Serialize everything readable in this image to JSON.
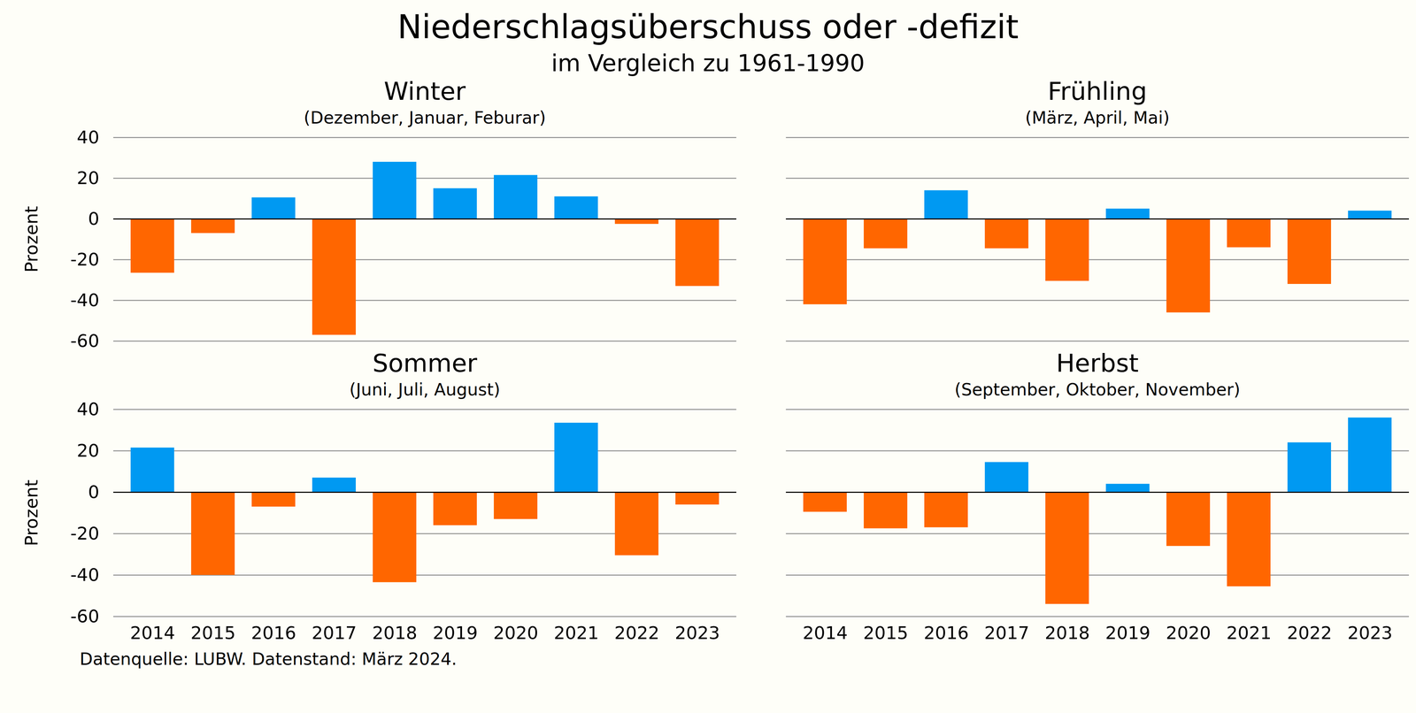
{
  "title": "Niederschlagsüberschuss oder -defizit",
  "subtitle": "im Vergleich zu 1961-1990",
  "source": "Datenquelle: LUBW. Datenstand: März 2024.",
  "chart_data": [
    {
      "type": "bar",
      "title": "Winter",
      "subtitle": "(Dezember, Januar, Feburar)",
      "categories": [
        "2014",
        "2015",
        "2016",
        "2017",
        "2018",
        "2019",
        "2020",
        "2021",
        "2022",
        "2023"
      ],
      "values": [
        -26.5,
        -7,
        10.5,
        -57,
        28,
        15,
        21.5,
        11,
        -2.5,
        -33
      ],
      "colors": [
        "#ff6600",
        "#ff6600",
        "#0099f2",
        "#ff6600",
        "#0099f2",
        "#0099f2",
        "#0099f2",
        "#0099f2",
        "#ff6600",
        "#ff6600"
      ],
      "ylabel": "Prozent",
      "ylim": [
        -60,
        40
      ],
      "yticks": [
        -60,
        -40,
        -20,
        0,
        20,
        40
      ],
      "grid": true,
      "tick_labels": "y"
    },
    {
      "type": "bar",
      "title": "Frühling",
      "subtitle": "(März, April, Mai)",
      "categories": [
        "2014",
        "2015",
        "2016",
        "2017",
        "2018",
        "2019",
        "2020",
        "2021",
        "2022",
        "2023"
      ],
      "values": [
        -42,
        -14.5,
        14,
        -14.5,
        -30.5,
        5,
        -46,
        -14,
        -32,
        4
      ],
      "colors": [
        "#ff6600",
        "#ff6600",
        "#0099f2",
        "#ff6600",
        "#ff6600",
        "#0099f2",
        "#ff6600",
        "#ff6600",
        "#ff6600",
        "#0099f2"
      ],
      "ylim": [
        -60,
        40
      ],
      "yticks": [
        -60,
        -40,
        -20,
        0,
        20,
        40
      ],
      "grid": true,
      "tick_labels": false
    },
    {
      "type": "bar",
      "title": "Sommer",
      "subtitle": "(Juni, Juli, August)",
      "categories": [
        "2014",
        "2015",
        "2016",
        "2017",
        "2018",
        "2019",
        "2020",
        "2021",
        "2022",
        "2023"
      ],
      "values": [
        21.5,
        -40,
        -7,
        7,
        -43.5,
        -16,
        -13,
        33.5,
        -30.5,
        -6
      ],
      "colors": [
        "#0099f2",
        "#ff6600",
        "#ff6600",
        "#0099f2",
        "#ff6600",
        "#ff6600",
        "#ff6600",
        "#0099f2",
        "#ff6600",
        "#ff6600"
      ],
      "ylabel": "Prozent",
      "ylim": [
        -60,
        40
      ],
      "yticks": [
        -60,
        -40,
        -20,
        0,
        20,
        40
      ],
      "grid": true
    },
    {
      "type": "bar",
      "title": "Herbst",
      "subtitle": "(September, Oktober, November)",
      "categories": [
        "2014",
        "2015",
        "2016",
        "2017",
        "2018",
        "2019",
        "2020",
        "2021",
        "2022",
        "2023"
      ],
      "values": [
        -9.5,
        -17.5,
        -17,
        14.5,
        -54,
        4,
        -26,
        -45.5,
        24,
        36
      ],
      "colors": [
        "#ff6600",
        "#ff6600",
        "#ff6600",
        "#0099f2",
        "#ff6600",
        "#0099f2",
        "#ff6600",
        "#ff6600",
        "#0099f2",
        "#0099f2"
      ],
      "ylim": [
        -60,
        40
      ],
      "yticks": [
        -60,
        -40,
        -20,
        0,
        20,
        40
      ],
      "grid": true,
      "tick_labels": "x"
    }
  ]
}
